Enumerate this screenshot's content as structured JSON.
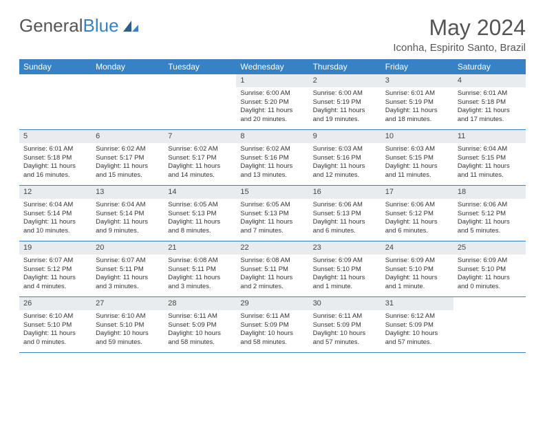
{
  "logo": {
    "text1": "General",
    "text2": "Blue"
  },
  "title": "May 2024",
  "subtitle": "Iconha, Espirito Santo, Brazil",
  "colors": {
    "header_bg": "#3782c4",
    "header_text": "#ffffff",
    "daynum_bg": "#e9ecef",
    "border": "#3782c4",
    "text": "#333333"
  },
  "day_names": [
    "Sunday",
    "Monday",
    "Tuesday",
    "Wednesday",
    "Thursday",
    "Friday",
    "Saturday"
  ],
  "weeks": [
    [
      {
        "empty": true
      },
      {
        "empty": true
      },
      {
        "empty": true
      },
      {
        "n": "1",
        "sr": "Sunrise: 6:00 AM",
        "ss": "Sunset: 5:20 PM",
        "d1": "Daylight: 11 hours",
        "d2": "and 20 minutes."
      },
      {
        "n": "2",
        "sr": "Sunrise: 6:00 AM",
        "ss": "Sunset: 5:19 PM",
        "d1": "Daylight: 11 hours",
        "d2": "and 19 minutes."
      },
      {
        "n": "3",
        "sr": "Sunrise: 6:01 AM",
        "ss": "Sunset: 5:19 PM",
        "d1": "Daylight: 11 hours",
        "d2": "and 18 minutes."
      },
      {
        "n": "4",
        "sr": "Sunrise: 6:01 AM",
        "ss": "Sunset: 5:18 PM",
        "d1": "Daylight: 11 hours",
        "d2": "and 17 minutes."
      }
    ],
    [
      {
        "n": "5",
        "sr": "Sunrise: 6:01 AM",
        "ss": "Sunset: 5:18 PM",
        "d1": "Daylight: 11 hours",
        "d2": "and 16 minutes."
      },
      {
        "n": "6",
        "sr": "Sunrise: 6:02 AM",
        "ss": "Sunset: 5:17 PM",
        "d1": "Daylight: 11 hours",
        "d2": "and 15 minutes."
      },
      {
        "n": "7",
        "sr": "Sunrise: 6:02 AM",
        "ss": "Sunset: 5:17 PM",
        "d1": "Daylight: 11 hours",
        "d2": "and 14 minutes."
      },
      {
        "n": "8",
        "sr": "Sunrise: 6:02 AM",
        "ss": "Sunset: 5:16 PM",
        "d1": "Daylight: 11 hours",
        "d2": "and 13 minutes."
      },
      {
        "n": "9",
        "sr": "Sunrise: 6:03 AM",
        "ss": "Sunset: 5:16 PM",
        "d1": "Daylight: 11 hours",
        "d2": "and 12 minutes."
      },
      {
        "n": "10",
        "sr": "Sunrise: 6:03 AM",
        "ss": "Sunset: 5:15 PM",
        "d1": "Daylight: 11 hours",
        "d2": "and 11 minutes."
      },
      {
        "n": "11",
        "sr": "Sunrise: 6:04 AM",
        "ss": "Sunset: 5:15 PM",
        "d1": "Daylight: 11 hours",
        "d2": "and 11 minutes."
      }
    ],
    [
      {
        "n": "12",
        "sr": "Sunrise: 6:04 AM",
        "ss": "Sunset: 5:14 PM",
        "d1": "Daylight: 11 hours",
        "d2": "and 10 minutes."
      },
      {
        "n": "13",
        "sr": "Sunrise: 6:04 AM",
        "ss": "Sunset: 5:14 PM",
        "d1": "Daylight: 11 hours",
        "d2": "and 9 minutes."
      },
      {
        "n": "14",
        "sr": "Sunrise: 6:05 AM",
        "ss": "Sunset: 5:13 PM",
        "d1": "Daylight: 11 hours",
        "d2": "and 8 minutes."
      },
      {
        "n": "15",
        "sr": "Sunrise: 6:05 AM",
        "ss": "Sunset: 5:13 PM",
        "d1": "Daylight: 11 hours",
        "d2": "and 7 minutes."
      },
      {
        "n": "16",
        "sr": "Sunrise: 6:06 AM",
        "ss": "Sunset: 5:13 PM",
        "d1": "Daylight: 11 hours",
        "d2": "and 6 minutes."
      },
      {
        "n": "17",
        "sr": "Sunrise: 6:06 AM",
        "ss": "Sunset: 5:12 PM",
        "d1": "Daylight: 11 hours",
        "d2": "and 6 minutes."
      },
      {
        "n": "18",
        "sr": "Sunrise: 6:06 AM",
        "ss": "Sunset: 5:12 PM",
        "d1": "Daylight: 11 hours",
        "d2": "and 5 minutes."
      }
    ],
    [
      {
        "n": "19",
        "sr": "Sunrise: 6:07 AM",
        "ss": "Sunset: 5:12 PM",
        "d1": "Daylight: 11 hours",
        "d2": "and 4 minutes."
      },
      {
        "n": "20",
        "sr": "Sunrise: 6:07 AM",
        "ss": "Sunset: 5:11 PM",
        "d1": "Daylight: 11 hours",
        "d2": "and 3 minutes."
      },
      {
        "n": "21",
        "sr": "Sunrise: 6:08 AM",
        "ss": "Sunset: 5:11 PM",
        "d1": "Daylight: 11 hours",
        "d2": "and 3 minutes."
      },
      {
        "n": "22",
        "sr": "Sunrise: 6:08 AM",
        "ss": "Sunset: 5:11 PM",
        "d1": "Daylight: 11 hours",
        "d2": "and 2 minutes."
      },
      {
        "n": "23",
        "sr": "Sunrise: 6:09 AM",
        "ss": "Sunset: 5:10 PM",
        "d1": "Daylight: 11 hours",
        "d2": "and 1 minute."
      },
      {
        "n": "24",
        "sr": "Sunrise: 6:09 AM",
        "ss": "Sunset: 5:10 PM",
        "d1": "Daylight: 11 hours",
        "d2": "and 1 minute."
      },
      {
        "n": "25",
        "sr": "Sunrise: 6:09 AM",
        "ss": "Sunset: 5:10 PM",
        "d1": "Daylight: 11 hours",
        "d2": "and 0 minutes."
      }
    ],
    [
      {
        "n": "26",
        "sr": "Sunrise: 6:10 AM",
        "ss": "Sunset: 5:10 PM",
        "d1": "Daylight: 11 hours",
        "d2": "and 0 minutes."
      },
      {
        "n": "27",
        "sr": "Sunrise: 6:10 AM",
        "ss": "Sunset: 5:10 PM",
        "d1": "Daylight: 10 hours",
        "d2": "and 59 minutes."
      },
      {
        "n": "28",
        "sr": "Sunrise: 6:11 AM",
        "ss": "Sunset: 5:09 PM",
        "d1": "Daylight: 10 hours",
        "d2": "and 58 minutes."
      },
      {
        "n": "29",
        "sr": "Sunrise: 6:11 AM",
        "ss": "Sunset: 5:09 PM",
        "d1": "Daylight: 10 hours",
        "d2": "and 58 minutes."
      },
      {
        "n": "30",
        "sr": "Sunrise: 6:11 AM",
        "ss": "Sunset: 5:09 PM",
        "d1": "Daylight: 10 hours",
        "d2": "and 57 minutes."
      },
      {
        "n": "31",
        "sr": "Sunrise: 6:12 AM",
        "ss": "Sunset: 5:09 PM",
        "d1": "Daylight: 10 hours",
        "d2": "and 57 minutes."
      },
      {
        "empty": true
      }
    ]
  ]
}
